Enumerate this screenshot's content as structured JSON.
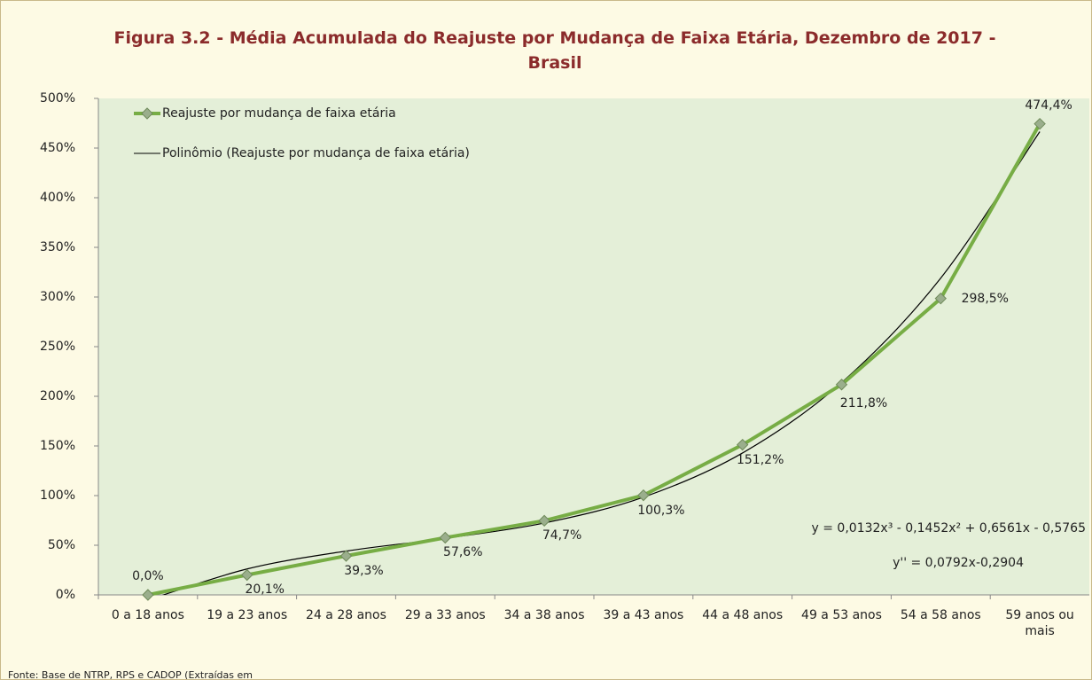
{
  "chart_data": {
    "type": "line",
    "title": "Figura 3.2 - Média Acumulada do Reajuste por Mudança de Faixa Etária, Dezembro de 2017 - Brasil",
    "categories": [
      "0 a 18 anos",
      "19 a 23 anos",
      "24 a 28 anos",
      "29 a 33 anos",
      "34 a 38 anos",
      "39 a 43 anos",
      "44 a 48 anos",
      "49 a 53 anos",
      "54 a 58 anos",
      "59 anos ou mais"
    ],
    "series": [
      {
        "name": "Reajuste por mudança de faixa etária",
        "color": "#77ad45",
        "values": [
          0,
          20.1,
          39.3,
          57.6,
          74.7,
          100.3,
          151.2,
          211.8,
          298.5,
          474.4
        ],
        "value_labels": [
          "0,0%",
          "20,1%",
          "39,3%",
          "57,6%",
          "74,7%",
          "100,3%",
          "151,2%",
          "211,8%",
          "298,5%",
          "474,4%"
        ]
      },
      {
        "name": "Polinômio (Reajuste por mudança de faixa etária)",
        "color": "#000000",
        "values": [
          -5.2,
          26.1,
          44.1,
          57.0,
          72.4,
          98.4,
          142.9,
          213.8,
          319.0,
          466.5
        ]
      }
    ],
    "annotations": [
      "y = 0,0132x³ - 0,1452x² + 0,6561x - 0,5765",
      "y'' = 0,0792x-0,2904"
    ],
    "source": "Fonte: Base de NTRP, RPS e CADOP (Extraídas em",
    "ylim": [
      0,
      500
    ],
    "yticks": [
      {
        "value": 0,
        "label": "0%"
      },
      {
        "value": 50,
        "label": "50%"
      },
      {
        "value": 100,
        "label": "100%"
      },
      {
        "value": 150,
        "label": "150%"
      },
      {
        "value": 200,
        "label": "200%"
      },
      {
        "value": 250,
        "label": "250%"
      },
      {
        "value": 300,
        "label": "300%"
      },
      {
        "value": 350,
        "label": "350%"
      },
      {
        "value": 400,
        "label": "400%"
      },
      {
        "value": 450,
        "label": "450%"
      },
      {
        "value": 500,
        "label": "500%"
      }
    ],
    "grid": false,
    "legend": "top-left"
  }
}
